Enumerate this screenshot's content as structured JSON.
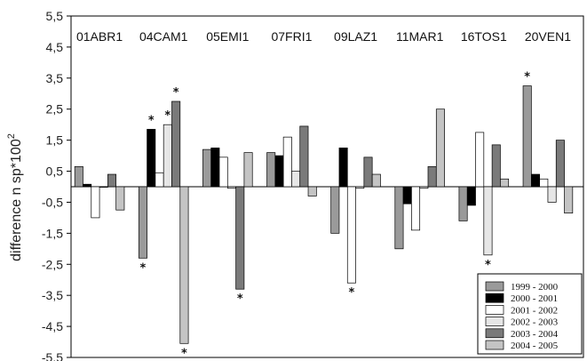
{
  "chart_data": {
    "type": "bar",
    "ylabel_main": "difference n sp*100",
    "ylabel_sup": "2",
    "ylim": [
      -5.5,
      5.5
    ],
    "yticks": [
      "5,5",
      "4,5",
      "3,5",
      "2,5",
      "1,5",
      "0,5",
      "-0,5",
      "-1,5",
      "-2,5",
      "-3,5",
      "-4,5",
      "-5,5"
    ],
    "categories": [
      "01ABR1",
      "04CAM1",
      "05EMI1",
      "07FRI1",
      "09LAZ1",
      "11MAR1",
      "16TOS1",
      "20VEN1"
    ],
    "legend_position": "bottom-right",
    "series": [
      {
        "name": "1999 - 2000",
        "color": "#9a9a9a",
        "values": [
          0.65,
          -2.3,
          1.2,
          1.1,
          -1.5,
          -2.0,
          -1.1,
          3.25
        ]
      },
      {
        "name": "2000 - 2001",
        "color": "#000000",
        "values": [
          0.08,
          1.85,
          1.25,
          1.0,
          1.25,
          -0.55,
          -0.6,
          0.4
        ]
      },
      {
        "name": "2001 - 2002",
        "color": "#ffffff",
        "values": [
          -1.0,
          0.45,
          0.95,
          1.6,
          -3.1,
          -1.4,
          1.75,
          0.25
        ]
      },
      {
        "name": "2002 - 2003",
        "color": "#e6e6e6",
        "values": [
          0.0,
          2.0,
          -0.05,
          0.5,
          -0.05,
          -0.05,
          -2.2,
          -0.5
        ]
      },
      {
        "name": "2003 - 2004",
        "color": "#7a7a7a",
        "values": [
          0.4,
          2.75,
          -3.3,
          1.95,
          0.95,
          0.65,
          1.35,
          1.5
        ]
      },
      {
        "name": "2004 - 2005",
        "color": "#c4c4c4",
        "values": [
          -0.75,
          -5.05,
          1.1,
          -0.3,
          0.4,
          2.5,
          0.25,
          -0.85
        ]
      }
    ],
    "annotations": [
      {
        "text": "*",
        "category": "04CAM1",
        "series": 0
      },
      {
        "text": "*",
        "category": "04CAM1",
        "series": 1
      },
      {
        "text": "*",
        "category": "04CAM1",
        "series": 3
      },
      {
        "text": "*",
        "category": "04CAM1",
        "series": 4
      },
      {
        "text": "*",
        "category": "04CAM1",
        "series": 5
      },
      {
        "text": "*",
        "category": "05EMI1",
        "series": 4
      },
      {
        "text": "*",
        "category": "09LAZ1",
        "series": 2
      },
      {
        "text": "*",
        "category": "16TOS1",
        "series": 3
      },
      {
        "text": "*",
        "category": "20VEN1",
        "series": 0
      }
    ]
  }
}
